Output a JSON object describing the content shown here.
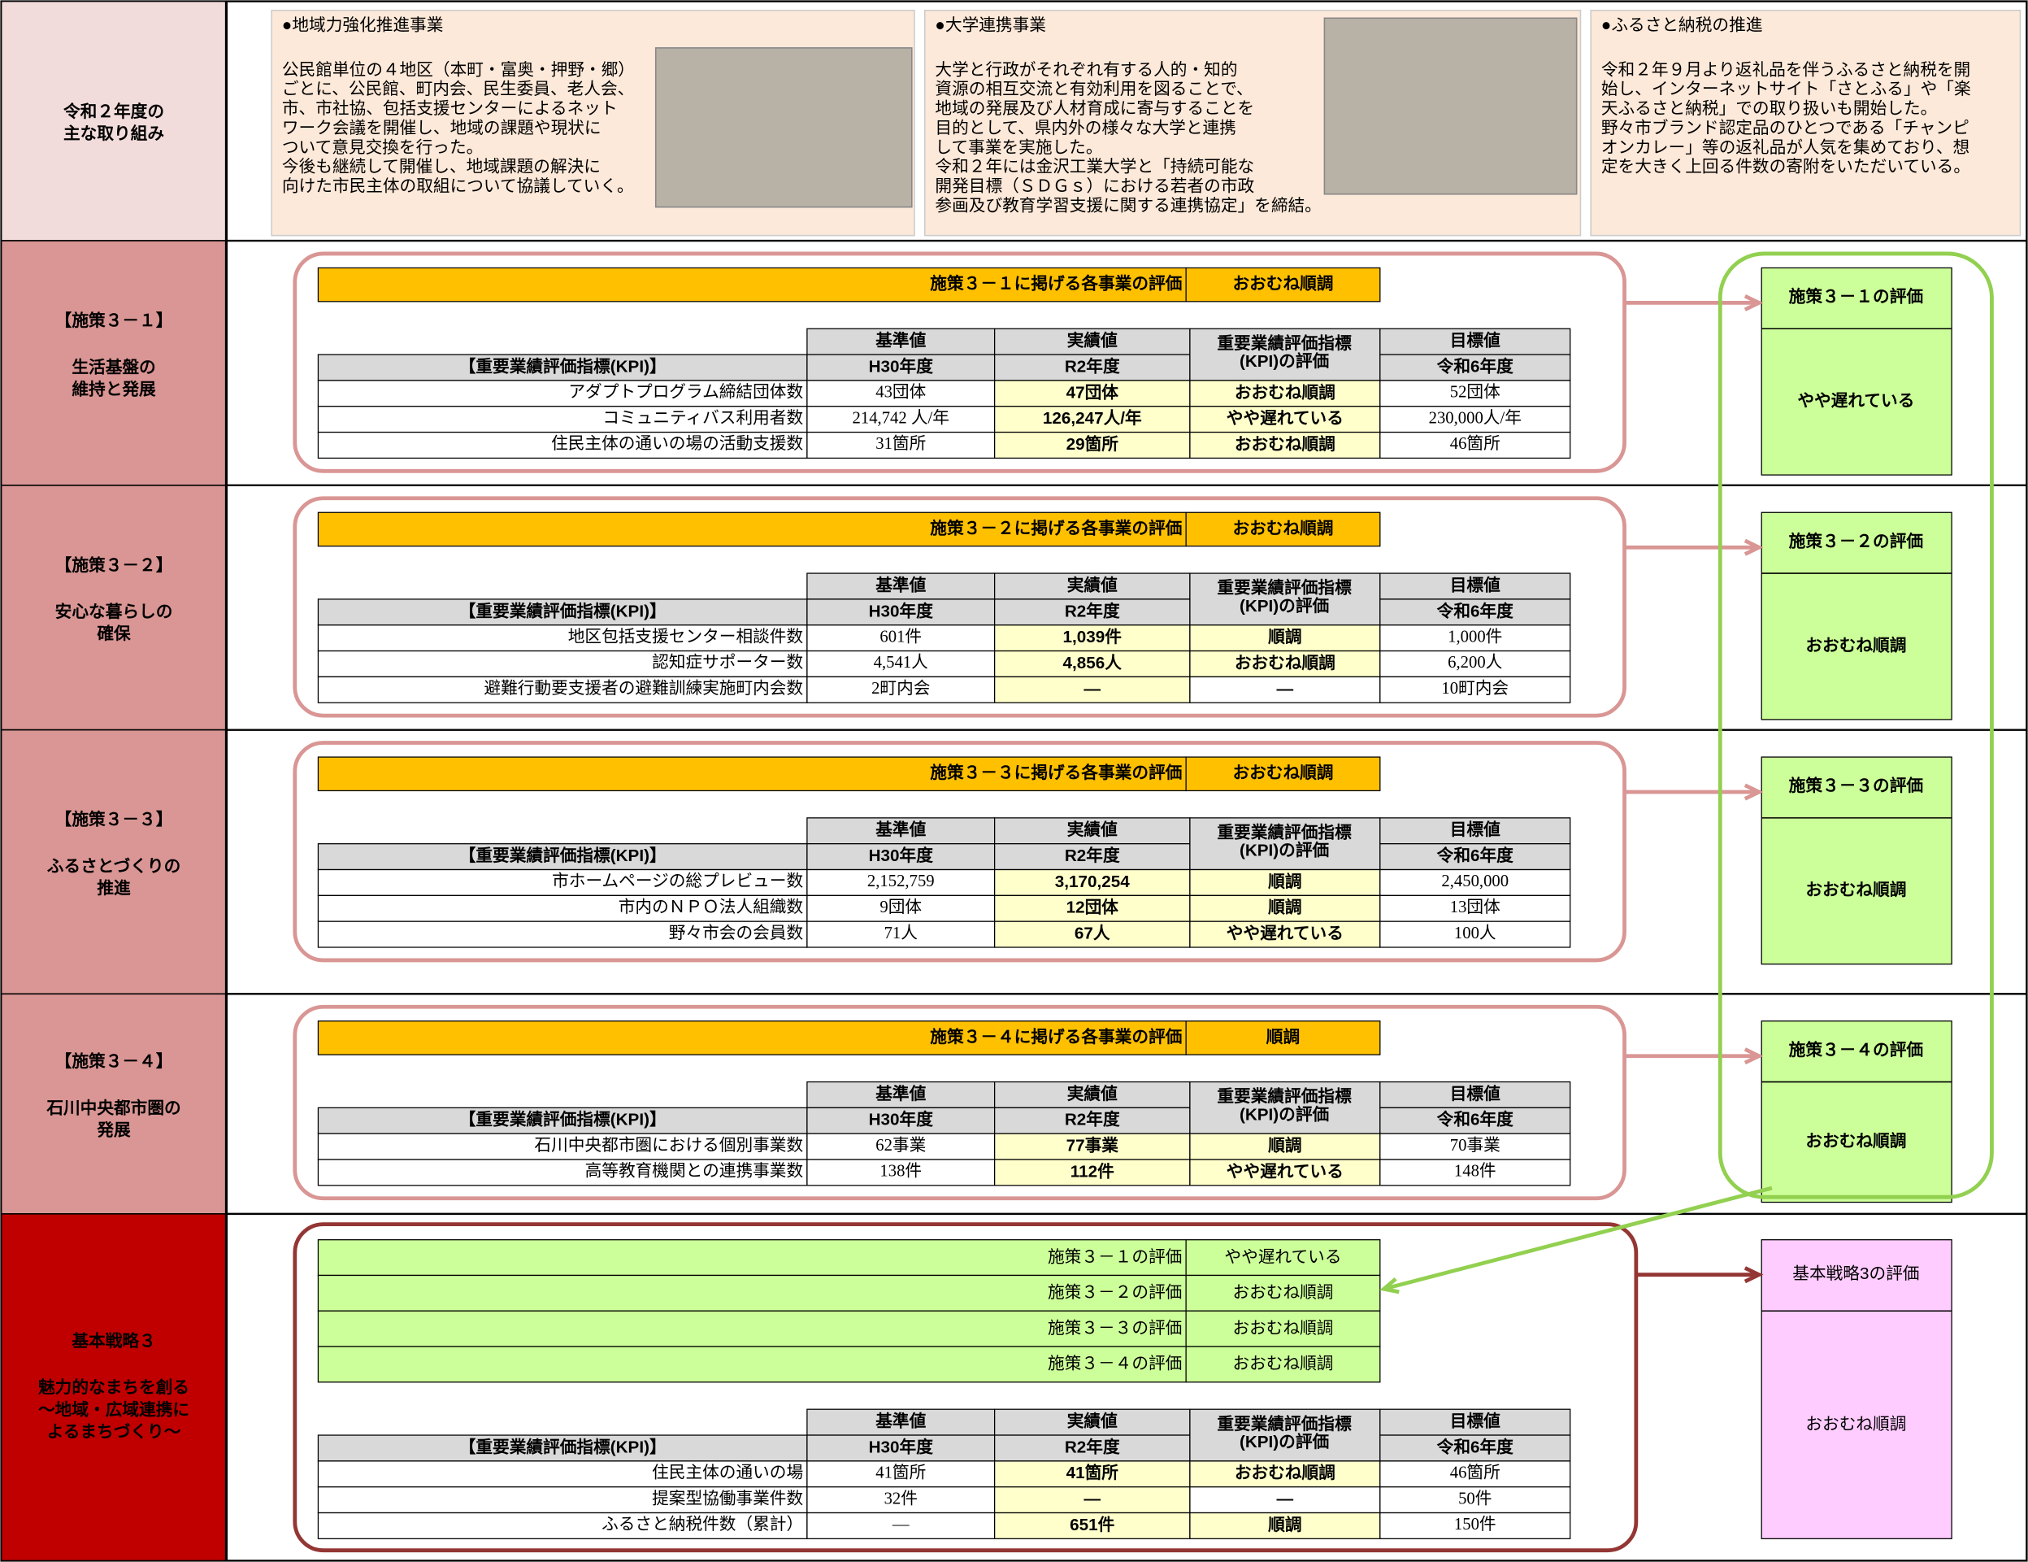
{
  "header": {
    "label": [
      "令和２年度の",
      "主な取り組み"
    ],
    "items": [
      {
        "title": "●地域力強化推進事業",
        "lines": [
          "公民館単位の４地区（本町・富奥・押野・郷）",
          "ごとに、公民館、町内会、民生委員、老人会、",
          "市、市社協、包括支援センターによるネット",
          "ワーク会議を開催し、地域の課題や現状に",
          "ついて意見交換を行った。",
          "今後も継続して開催し、地域課題の解決に",
          "向けた市民主体の取組について協議していく。"
        ]
      },
      {
        "title": "●大学連携事業",
        "lines": [
          "大学と行政がそれぞれ有する人的・知的",
          "資源の相互交流と有効利用を図ることで、",
          "地域の発展及び人材育成に寄与することを",
          "目的として、県内外の様々な大学と連携",
          "して事業を実施した。",
          "令和２年には金沢工業大学と「持続可能な",
          "開発目標（ＳＤＧｓ）における若者の市政",
          "参画及び教育学習支援に関する連携協定」を締結。"
        ]
      },
      {
        "title": "●ふるさと納税の推進",
        "lines": [
          "令和２年９月より返礼品を伴うふるさと納税を開",
          "始し、インターネットサイト「さとふる」や「楽",
          "天ふるさと納税」での取り扱いも開始した。",
          "野々市ブランド認定品のひとつである「チャンピ",
          "オンカレー」等の返礼品が人気を集めており、想",
          "定を大きく上回る件数の寄附をいただいている。"
        ]
      }
    ]
  },
  "kpi_header": {
    "label": "【重要業績評価指標(KPI)】",
    "base": "基準値",
    "base_year": "H30年度",
    "actual": "実績値",
    "actual_year": "R2年度",
    "eval": [
      "重要業績評価指標",
      "(KPI)の評価"
    ],
    "target": "目標値",
    "target_year": "令和6年度"
  },
  "sections": [
    {
      "label": "【施策３－１】",
      "name": [
        "生活基盤の",
        "維持と発展"
      ],
      "banner": "施策３－１に掲げる各事業の評価",
      "banner_eval": "おおむね順調",
      "rows": [
        [
          "アダプトプログラム締結団体数",
          "43団体",
          "47団体",
          "おおむね順調",
          "52団体"
        ],
        [
          "コミュニティバス利用者数",
          "214,742 人/年",
          "126,247人/年",
          "やや遅れている",
          "230,000人/年"
        ],
        [
          "住民主体の通いの場の活動支援数",
          "31箇所",
          "29箇所",
          "おおむね順調",
          "46箇所"
        ]
      ],
      "eval_title": "施策３－１の評価",
      "eval_value": "やや遅れている"
    },
    {
      "label": "【施策３－２】",
      "name": [
        "安心な暮らしの",
        "確保"
      ],
      "banner": "施策３－２に掲げる各事業の評価",
      "banner_eval": "おおむね順調",
      "rows": [
        [
          "地区包括支援センター相談件数",
          "601件",
          "1,039件",
          "順調",
          "1,000件"
        ],
        [
          "認知症サポーター数",
          "4,541人",
          "4,856人",
          "おおむね順調",
          "6,200人"
        ],
        [
          "避難行動要支援者の避難訓練実施町内会数",
          "2町内会",
          "―",
          "―",
          "10町内会"
        ]
      ],
      "eval_title": "施策３－２の評価",
      "eval_value": "おおむね順調"
    },
    {
      "label": "【施策３－３】",
      "name": [
        "ふるさとづくりの",
        "推進"
      ],
      "banner": "施策３－３に掲げる各事業の評価",
      "banner_eval": "おおむね順調",
      "rows": [
        [
          "市ホームページの総プレビュー数",
          "2,152,759",
          "3,170,254",
          "順調",
          "2,450,000"
        ],
        [
          "市内のＮＰＯ法人組織数",
          "9団体",
          "12団体",
          "順調",
          "13団体"
        ],
        [
          "野々市会の会員数",
          "71人",
          "67人",
          "やや遅れている",
          "100人"
        ]
      ],
      "eval_title": "施策３－３の評価",
      "eval_value": "おおむね順調"
    },
    {
      "label": "【施策３－４】",
      "name": [
        "石川中央都市圏の",
        "発展"
      ],
      "banner": "施策３－４に掲げる各事業の評価",
      "banner_eval": "順調",
      "rows": [
        [
          "石川中央都市圏における個別事業数",
          "62事業",
          "77事業",
          "順調",
          "70事業"
        ],
        [
          "高等教育機関との連携事業数",
          "138件",
          "112件",
          "やや遅れている",
          "148件"
        ]
      ],
      "eval_title": "施策３－４の評価",
      "eval_value": "おおむね順調"
    }
  ],
  "strategy": {
    "label": "基本戦略３",
    "name": [
      "魅力的なまちを創る",
      "～地域・広域連携に",
      "よるまちづくり～"
    ],
    "summary": [
      [
        "施策３－１の評価",
        "やや遅れている"
      ],
      [
        "施策３－２の評価",
        "おおむね順調"
      ],
      [
        "施策３－３の評価",
        "おおむね順調"
      ],
      [
        "施策３－４の評価",
        "おおむね順調"
      ]
    ],
    "rows": [
      [
        "住民主体の通いの場",
        "41箇所",
        "41箇所",
        "おおむね順調",
        "46箇所"
      ],
      [
        "提案型協働事業件数",
        "32件",
        "―",
        "―",
        "50件"
      ],
      [
        "ふるさと納税件数（累計）",
        "―",
        "651件",
        "順調",
        "150件"
      ]
    ],
    "eval_title": "基本戦略3の評価",
    "eval_value": "おおむね順調"
  }
}
